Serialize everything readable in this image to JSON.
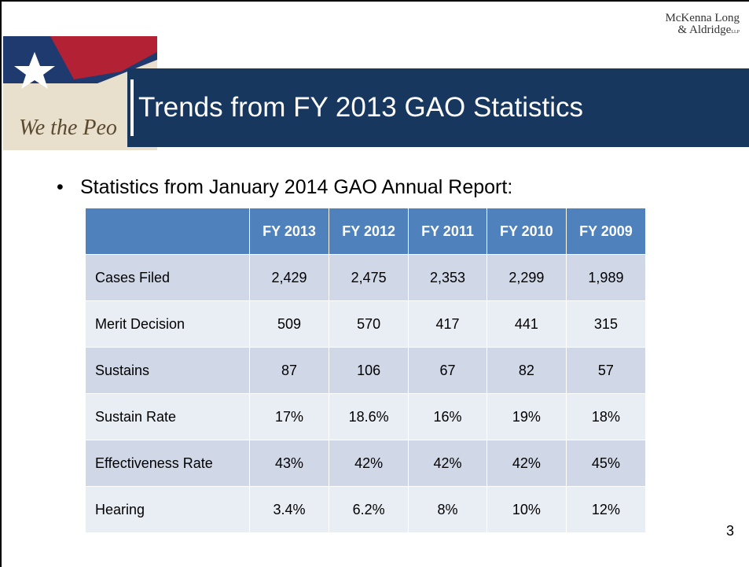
{
  "header": {
    "logo": [
      "McKenna Long",
      "& Aldridge",
      "LLP"
    ],
    "title": "Trends from FY 2013 GAO Statistics"
  },
  "bullet": "Statistics from January 2014 GAO Annual Report:",
  "table": {
    "columns": [
      "",
      "FY 2013",
      "FY 2012",
      "FY 2011",
      "FY 2010",
      "FY 2009"
    ],
    "rows": [
      [
        "Cases Filed",
        "2,429",
        "2,475",
        "2,353",
        "2,299",
        "1,989"
      ],
      [
        "Merit Decision",
        "509",
        "570",
        "417",
        "441",
        "315"
      ],
      [
        "Sustains",
        "87",
        "106",
        "67",
        "82",
        "57"
      ],
      [
        "Sustain Rate",
        "17%",
        "18.6%",
        "16%",
        "19%",
        "18%"
      ],
      [
        "Effectiveness Rate",
        "43%",
        "42%",
        "42%",
        "42%",
        "45%"
      ],
      [
        "Hearing",
        "3.4%",
        "6.2%",
        "8%",
        "10%",
        "12%"
      ]
    ]
  },
  "page_number": "3"
}
